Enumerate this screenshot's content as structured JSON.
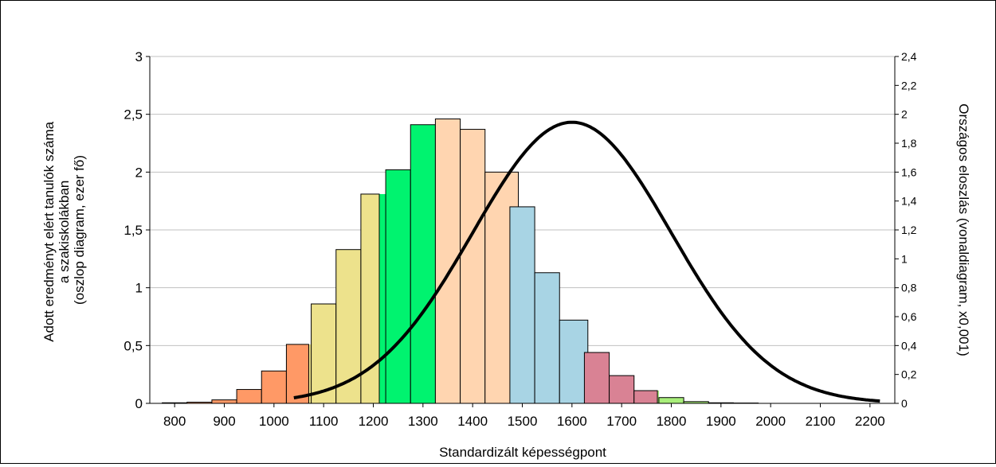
{
  "chart_data": {
    "type": "bar",
    "xlabel": "Standardizált képességpont",
    "ylabel_left": "Adott eredményt elért tanulók száma a szakiskolákban (oszlop diagram, ezer fő)",
    "ylabel_left_lines": [
      "Adott eredményt elért tanulók száma",
      "a szakiskolákban",
      "(oszlop diagram, ezer fő)"
    ],
    "ylabel_right": "Országos eloszlás (vonaldiagram, x0,001)",
    "xlim": [
      750,
      2250
    ],
    "ylim_left": [
      0,
      3
    ],
    "ylim_right": [
      0,
      2.4
    ],
    "x_ticks": [
      "800",
      "900",
      "1000",
      "1100",
      "1200",
      "1300",
      "1400",
      "1500",
      "1600",
      "1700",
      "1800",
      "1900",
      "2000",
      "2100",
      "2200"
    ],
    "y_left_ticks": [
      "0",
      "0,5",
      "1",
      "1,5",
      "2",
      "2,5",
      "3"
    ],
    "y_right_ticks": [
      "0",
      "0,2",
      "0,4",
      "0,6",
      "0,8",
      "1",
      "1,2",
      "1,4",
      "1,6",
      "1,8",
      "2",
      "2,2",
      "2,4"
    ],
    "grid": true,
    "bar_width": 50,
    "bars": [
      {
        "x": 800,
        "value": 0.005,
        "color": "#ff9966"
      },
      {
        "x": 850,
        "value": 0.01,
        "color": "#ff9966"
      },
      {
        "x": 900,
        "value": 0.03,
        "color": "#ff9966"
      },
      {
        "x": 950,
        "value": 0.12,
        "color": "#ff9966"
      },
      {
        "x": 1000,
        "value": 0.28,
        "color": "#ff9966"
      },
      {
        "x": 1050,
        "value": 0.51,
        "color": "#ff9966",
        "split_color": "#ede28c",
        "split_at": 1070
      },
      {
        "x": 1100,
        "value": 0.86,
        "color": "#ede28c"
      },
      {
        "x": 1150,
        "value": 1.33,
        "color": "#ede28c"
      },
      {
        "x": 1200,
        "value": 1.81,
        "color": "#ede28c",
        "split_color": "#00f36f",
        "split_at": 1212
      },
      {
        "x": 1250,
        "value": 2.02,
        "color": "#00f36f"
      },
      {
        "x": 1300,
        "value": 2.41,
        "color": "#00f36f"
      },
      {
        "x": 1350,
        "value": 2.46,
        "color": "#ffd5b0"
      },
      {
        "x": 1400,
        "value": 2.37,
        "color": "#ffd5b0"
      },
      {
        "x": 1450,
        "value": 2.0,
        "color": "#ffd5b0",
        "split_color": "#a8d4e4",
        "split_at": 1492
      },
      {
        "x": 1500,
        "value": 1.7,
        "color": "#a8d4e4"
      },
      {
        "x": 1550,
        "value": 1.13,
        "color": "#a8d4e4"
      },
      {
        "x": 1600,
        "value": 0.72,
        "color": "#a8d4e4",
        "split_color": "#d98294",
        "split_at": 1632
      },
      {
        "x": 1650,
        "value": 0.44,
        "color": "#d98294"
      },
      {
        "x": 1700,
        "value": 0.24,
        "color": "#d98294"
      },
      {
        "x": 1750,
        "value": 0.11,
        "color": "#d98294",
        "split_color": "#a8ee7a",
        "split_at": 1772
      },
      {
        "x": 1800,
        "value": 0.05,
        "color": "#a8ee7a"
      },
      {
        "x": 1850,
        "value": 0.015,
        "color": "#a8ee7a"
      },
      {
        "x": 1900,
        "value": 0.005,
        "color": "#a8ee7a"
      },
      {
        "x": 1950,
        "value": 0.003,
        "color": "#a8ee7a"
      }
    ],
    "series": [
      {
        "type": "line",
        "axis": "right",
        "color": "#000000",
        "distribution": "normal",
        "mean": 1600,
        "sd": 200,
        "peak": 1.945,
        "x_range": [
          1040,
          2220
        ]
      }
    ]
  }
}
